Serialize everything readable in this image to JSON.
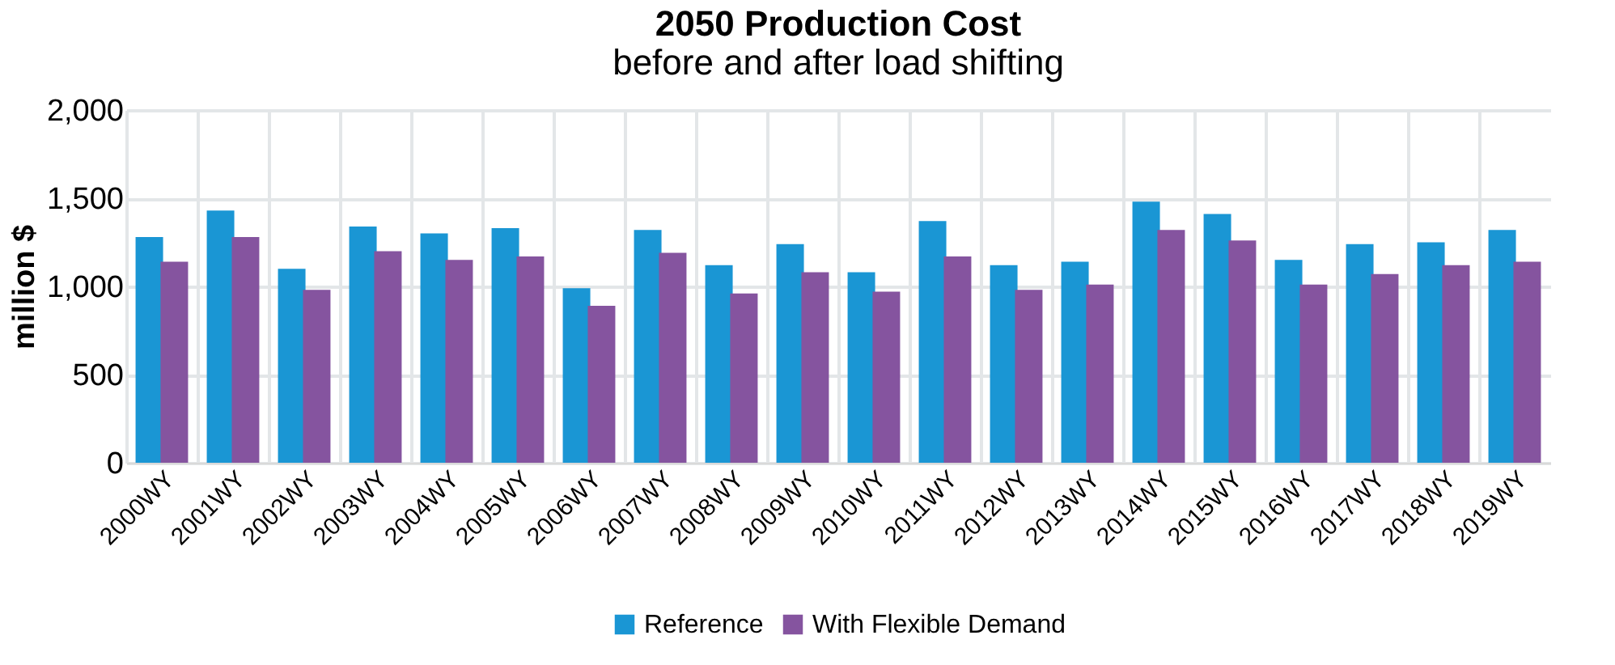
{
  "chart_data": {
    "type": "bar",
    "title": "2050 Production Cost",
    "subtitle": "before and after load shifting",
    "ylabel": "million $",
    "categories": [
      "2000WY",
      "2001WY",
      "2002WY",
      "2003WY",
      "2004WY",
      "2005WY",
      "2006WY",
      "2007WY",
      "2008WY",
      "2009WY",
      "2010WY",
      "2011WY",
      "2012WY",
      "2013WY",
      "2014WY",
      "2015WY",
      "2016WY",
      "2017WY",
      "2018WY",
      "2019WY"
    ],
    "series": [
      {
        "name": "Reference",
        "color": "#1a96d4",
        "values": [
          1280,
          1430,
          1100,
          1340,
          1300,
          1330,
          990,
          1320,
          1120,
          1240,
          1080,
          1370,
          1120,
          1140,
          1480,
          1410,
          1150,
          1240,
          1250,
          1320
        ]
      },
      {
        "name": "With Flexible Demand",
        "color": "#85549f",
        "values": [
          1140,
          1280,
          980,
          1200,
          1150,
          1170,
          890,
          1190,
          960,
          1080,
          970,
          1170,
          980,
          1010,
          1320,
          1260,
          1010,
          1070,
          1120,
          1140
        ]
      }
    ],
    "ylim": [
      0,
      2000
    ],
    "yticks": [
      0,
      500,
      {
        "value": 1000,
        "label": "1,000"
      },
      {
        "value": 1500,
        "label": "1,500"
      },
      {
        "value": 2000,
        "label": "2,000"
      }
    ],
    "grid": true,
    "legend": "bottom"
  }
}
